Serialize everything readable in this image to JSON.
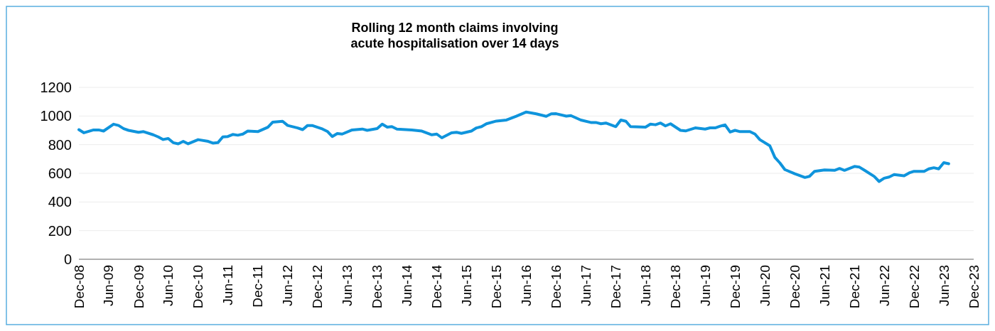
{
  "chart_data": {
    "type": "line",
    "title": "Rolling 12 month claims involving\nacute hospitalisation over 14 days",
    "xlim": [
      "2008-12",
      "2023-12"
    ],
    "xticks": [
      {
        "value": "2008-12",
        "label": "Dec-08"
      },
      {
        "value": "2009-06",
        "label": "Jun-09"
      },
      {
        "value": "2009-12",
        "label": "Dec-09"
      },
      {
        "value": "2010-06",
        "label": "Jun-10"
      },
      {
        "value": "2010-12",
        "label": "Dec-10"
      },
      {
        "value": "2011-06",
        "label": "Jun-11"
      },
      {
        "value": "2011-12",
        "label": "Dec-11"
      },
      {
        "value": "2012-06",
        "label": "Jun-12"
      },
      {
        "value": "2012-12",
        "label": "Dec-12"
      },
      {
        "value": "2013-06",
        "label": "Jun-13"
      },
      {
        "value": "2013-12",
        "label": "Dec-13"
      },
      {
        "value": "2014-06",
        "label": "Jun-14"
      },
      {
        "value": "2014-12",
        "label": "Dec-14"
      },
      {
        "value": "2015-06",
        "label": "Jun-15"
      },
      {
        "value": "2015-12",
        "label": "Dec-15"
      },
      {
        "value": "2016-06",
        "label": "Jun-16"
      },
      {
        "value": "2016-12",
        "label": "Dec-16"
      },
      {
        "value": "2017-06",
        "label": "Jun-17"
      },
      {
        "value": "2017-12",
        "label": "Dec-17"
      },
      {
        "value": "2018-06",
        "label": "Jun-18"
      },
      {
        "value": "2018-12",
        "label": "Dec-18"
      },
      {
        "value": "2019-06",
        "label": "Jun-19"
      },
      {
        "value": "2019-12",
        "label": "Dec-19"
      },
      {
        "value": "2020-06",
        "label": "Jun-20"
      },
      {
        "value": "2020-12",
        "label": "Dec-20"
      },
      {
        "value": "2021-06",
        "label": "Jun-21"
      },
      {
        "value": "2021-12",
        "label": "Dec-21"
      },
      {
        "value": "2022-06",
        "label": "Jun-22"
      },
      {
        "value": "2022-12",
        "label": "Dec-22"
      },
      {
        "value": "2023-06",
        "label": "Jun-23"
      },
      {
        "value": "2023-12",
        "label": "Dec-23"
      }
    ],
    "ylim": [
      0,
      1200
    ],
    "yticks": [
      0,
      200,
      400,
      600,
      800,
      1000,
      1200
    ],
    "grid": "y",
    "x": [
      "2008-12",
      "2009-01",
      "2009-03",
      "2009-04",
      "2009-05",
      "2009-07",
      "2009-08",
      "2009-09",
      "2009-10",
      "2009-12",
      "2010-01",
      "2010-03",
      "2010-04",
      "2010-05",
      "2010-06",
      "2010-07",
      "2010-08",
      "2010-09",
      "2010-10",
      "2010-12",
      "2011-02",
      "2011-03",
      "2011-04",
      "2011-05",
      "2011-06",
      "2011-07",
      "2011-08",
      "2011-09",
      "2011-10",
      "2011-12",
      "2012-02",
      "2012-03",
      "2012-05",
      "2012-06",
      "2012-08",
      "2012-09",
      "2012-10",
      "2012-11",
      "2013-01",
      "2013-02",
      "2013-03",
      "2013-04",
      "2013-05",
      "2013-07",
      "2013-09",
      "2013-10",
      "2013-12",
      "2014-01",
      "2014-02",
      "2014-03",
      "2014-04",
      "2014-07",
      "2014-09",
      "2014-11",
      "2014-12",
      "2015-01",
      "2015-03",
      "2015-04",
      "2015-05",
      "2015-07",
      "2015-08",
      "2015-09",
      "2015-10",
      "2015-12",
      "2016-02",
      "2016-04",
      "2016-06",
      "2016-08",
      "2016-10",
      "2016-11",
      "2016-12",
      "2017-02",
      "2017-03",
      "2017-05",
      "2017-07",
      "2017-08",
      "2017-09",
      "2017-10",
      "2017-12",
      "2018-01",
      "2018-02",
      "2018-03",
      "2018-06",
      "2018-07",
      "2018-08",
      "2018-09",
      "2018-10",
      "2018-11",
      "2019-01",
      "2019-02",
      "2019-04",
      "2019-06",
      "2019-07",
      "2019-08",
      "2019-09",
      "2019-10",
      "2019-11",
      "2019-12",
      "2020-01",
      "2020-03",
      "2020-04",
      "2020-05",
      "2020-07",
      "2020-08",
      "2020-09",
      "2020-10",
      "2020-12",
      "2021-02",
      "2021-03",
      "2021-04",
      "2021-06",
      "2021-08",
      "2021-09",
      "2021-10",
      "2021-12",
      "2022-01",
      "2022-02",
      "2022-04",
      "2022-05",
      "2022-06",
      "2022-07",
      "2022-08",
      "2022-10",
      "2022-11",
      "2022-12",
      "2023-02",
      "2023-03",
      "2023-04",
      "2023-05",
      "2023-06",
      "2023-07"
    ],
    "series": [
      {
        "color": "#0f94dc",
        "line_style": "solid",
        "marker": "none",
        "values": [
          905,
          883,
          903,
          903,
          895,
          943,
          934,
          912,
          900,
          886,
          891,
          869,
          854,
          836,
          843,
          814,
          806,
          823,
          806,
          835,
          823,
          811,
          814,
          854,
          857,
          871,
          866,
          874,
          895,
          891,
          922,
          957,
          963,
          934,
          917,
          905,
          934,
          933,
          909,
          891,
          857,
          878,
          874,
          903,
          909,
          900,
          912,
          943,
          922,
          926,
          909,
          903,
          895,
          869,
          874,
          848,
          883,
          886,
          879,
          895,
          917,
          926,
          946,
          965,
          972,
          999,
          1028,
          1015,
          998,
          1015,
          1016,
          999,
          1003,
          972,
          955,
          955,
          946,
          951,
          926,
          972,
          963,
          926,
          922,
          943,
          939,
          951,
          931,
          946,
          900,
          896,
          917,
          909,
          917,
          917,
          929,
          938,
          888,
          900,
          891,
          891,
          874,
          835,
          792,
          711,
          672,
          626,
          597,
          571,
          579,
          614,
          624,
          621,
          634,
          621,
          648,
          643,
          621,
          578,
          543,
          566,
          574,
          591,
          583,
          603,
          614,
          614,
          631,
          639,
          631,
          674,
          667
        ]
      }
    ]
  }
}
